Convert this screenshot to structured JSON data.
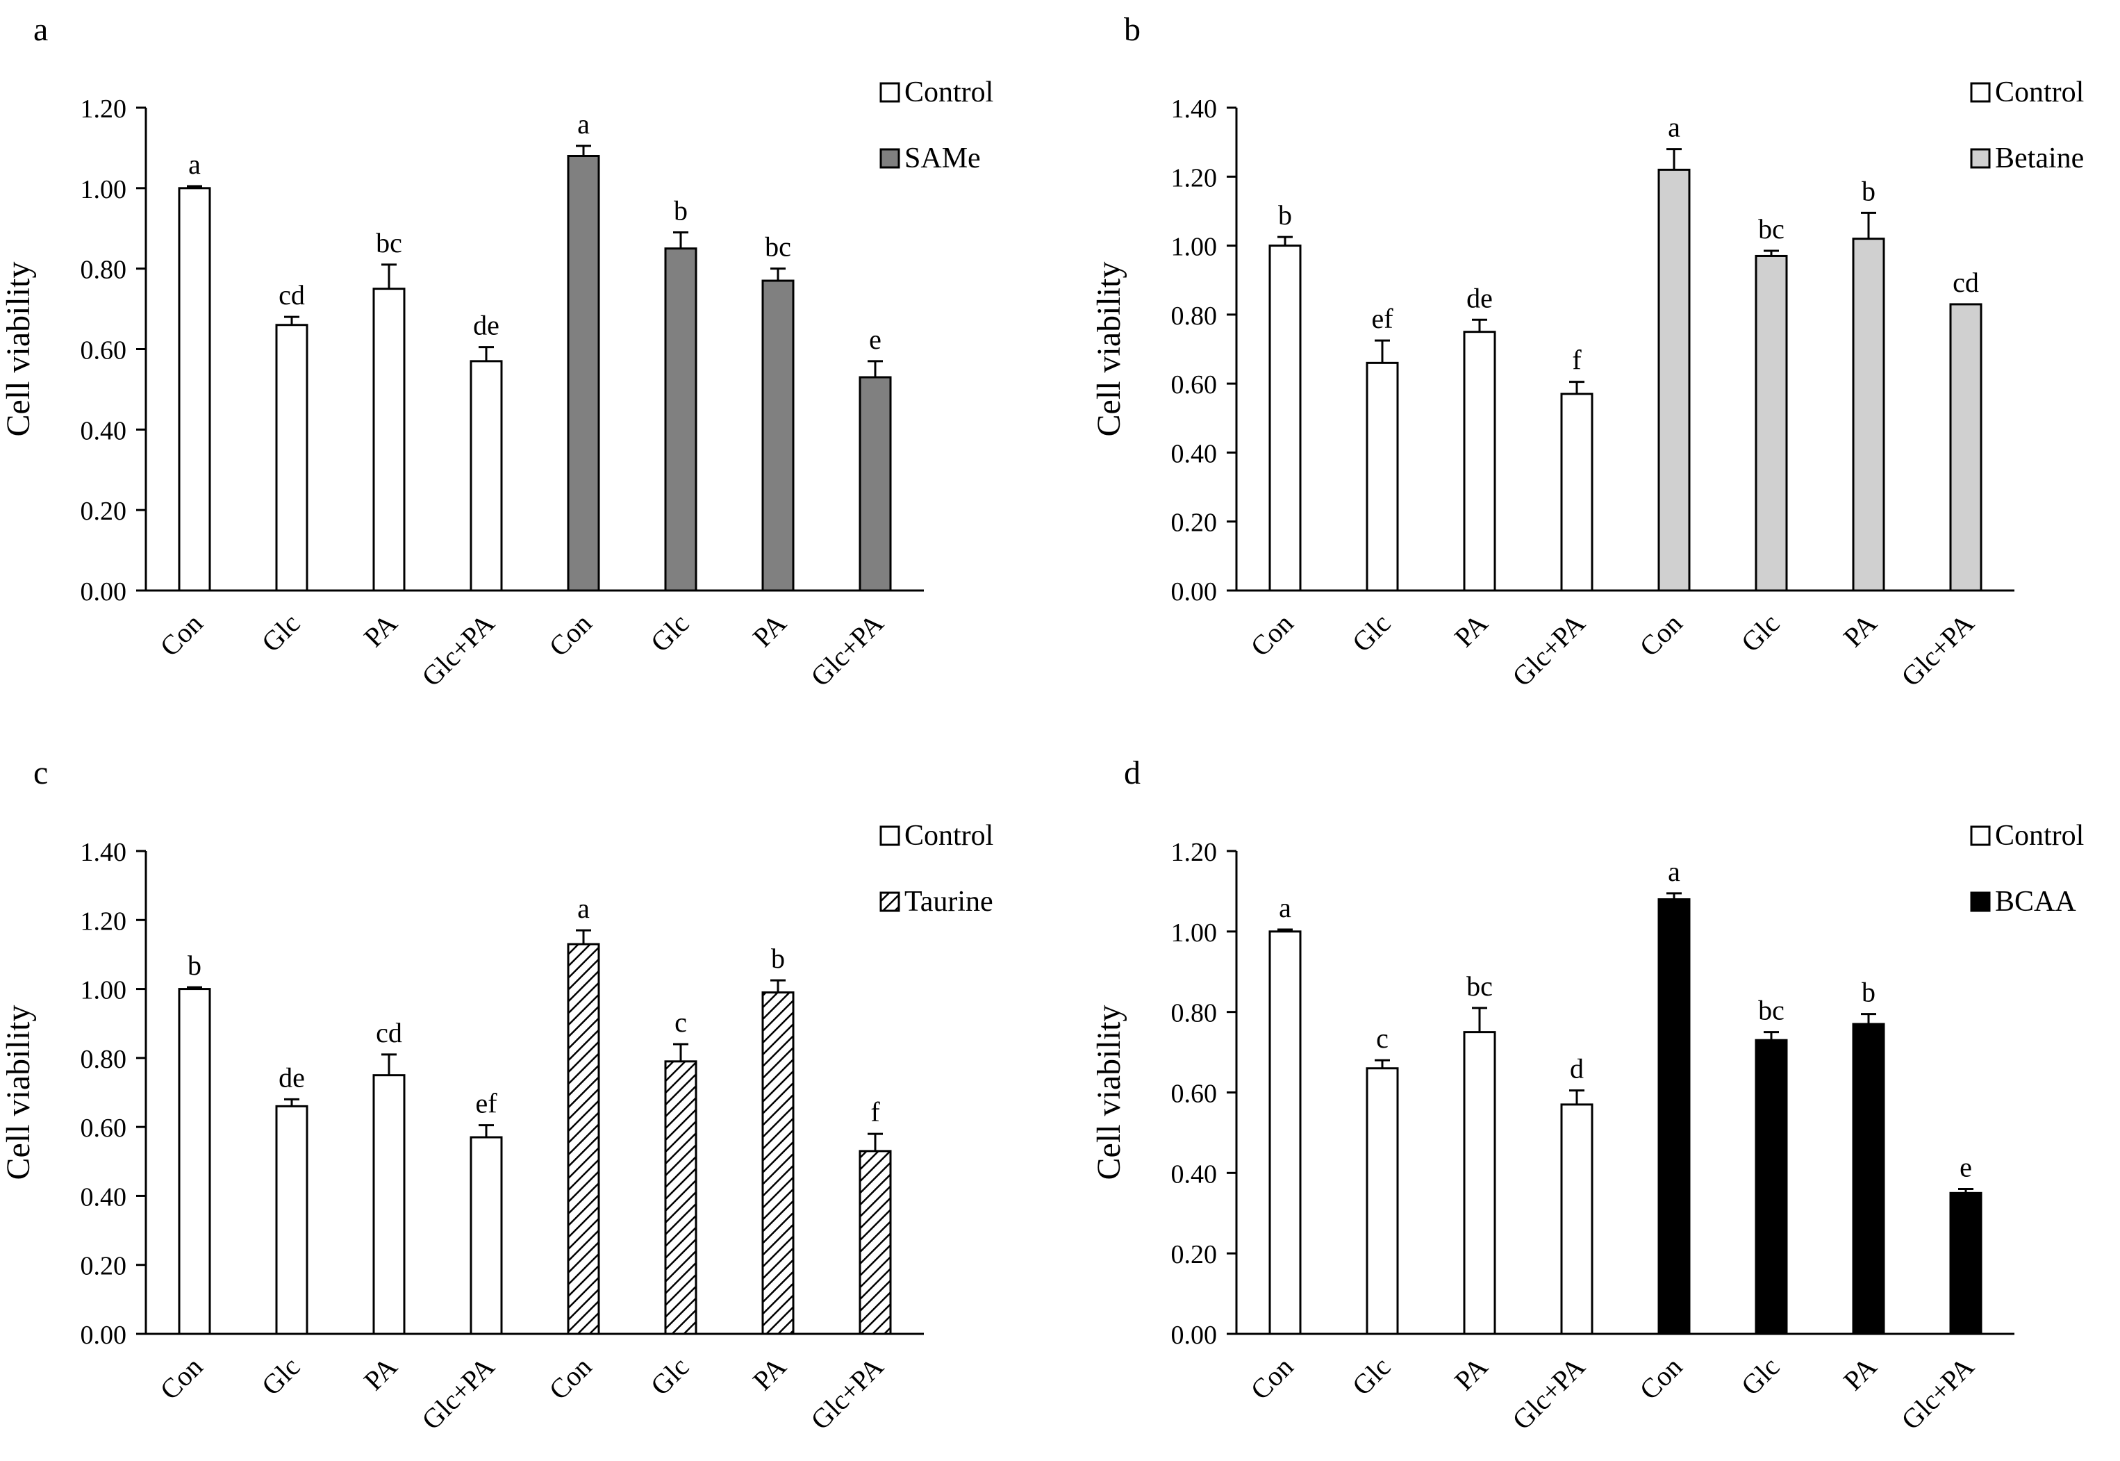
{
  "chart_data": [
    {
      "panel_label": "a",
      "type": "bar",
      "ylabel": "Cell viability",
      "ylim": [
        0,
        1.2
      ],
      "yticks": [
        "0.00",
        "0.20",
        "0.40",
        "0.60",
        "0.80",
        "1.00",
        "1.20"
      ],
      "categories": [
        "Con",
        "Glc",
        "PA",
        "Glc+PA",
        "Con",
        "Glc",
        "PA",
        "Glc+PA"
      ],
      "values": [
        1.0,
        0.66,
        0.75,
        0.57,
        1.08,
        0.85,
        0.77,
        0.53
      ],
      "errors": [
        0.005,
        0.02,
        0.06,
        0.035,
        0.025,
        0.04,
        0.03,
        0.04
      ],
      "letters": [
        "a",
        "cd",
        "bc",
        "de",
        "a",
        "b",
        "bc",
        "e"
      ],
      "fills": [
        "white",
        "white",
        "white",
        "white",
        "#808080",
        "#808080",
        "#808080",
        "#808080"
      ],
      "legend": [
        {
          "label": "Control",
          "fill": "white"
        },
        {
          "label": "SAMe",
          "fill": "#808080"
        }
      ],
      "legend_position": "top-right"
    },
    {
      "panel_label": "b",
      "type": "bar",
      "ylabel": "Cell viability",
      "ylim": [
        0,
        1.4
      ],
      "yticks": [
        "0.00",
        "0.20",
        "0.40",
        "0.60",
        "0.80",
        "1.00",
        "1.20",
        "1.40"
      ],
      "categories": [
        "Con",
        "Glc",
        "PA",
        "Glc+PA",
        "Con",
        "Glc",
        "PA",
        "Glc+PA"
      ],
      "values": [
        1.0,
        0.66,
        0.75,
        0.57,
        1.22,
        0.97,
        1.02,
        0.83
      ],
      "errors": [
        0.025,
        0.065,
        0.035,
        0.035,
        0.06,
        0.015,
        0.075,
        0.0
      ],
      "letters": [
        "b",
        "ef",
        "de",
        "f",
        "a",
        "bc",
        "b",
        "cd"
      ],
      "fills": [
        "white",
        "white",
        "white",
        "white",
        "#d0d0d0",
        "#d0d0d0",
        "#d0d0d0",
        "#d0d0d0"
      ],
      "legend": [
        {
          "label": "Control",
          "fill": "white"
        },
        {
          "label": "Betaine",
          "fill": "#d0d0d0"
        }
      ],
      "legend_position": "top-right"
    },
    {
      "panel_label": "c",
      "type": "bar",
      "ylabel": "Cell viability",
      "ylim": [
        0,
        1.4
      ],
      "yticks": [
        "0.00",
        "0.20",
        "0.40",
        "0.60",
        "0.80",
        "1.00",
        "1.20",
        "1.40"
      ],
      "categories": [
        "Con",
        "Glc",
        "PA",
        "Glc+PA",
        "Con",
        "Glc",
        "PA",
        "Glc+PA"
      ],
      "values": [
        1.0,
        0.66,
        0.75,
        0.57,
        1.13,
        0.79,
        0.99,
        0.53
      ],
      "errors": [
        0.005,
        0.02,
        0.06,
        0.035,
        0.04,
        0.05,
        0.035,
        0.05
      ],
      "letters": [
        "b",
        "de",
        "cd",
        "ef",
        "a",
        "c",
        "b",
        "f"
      ],
      "fills": [
        "white",
        "white",
        "white",
        "white",
        "hatch",
        "hatch",
        "hatch",
        "hatch"
      ],
      "legend": [
        {
          "label": "Control",
          "fill": "white"
        },
        {
          "label": "Taurine",
          "fill": "hatch"
        }
      ],
      "legend_position": "top-right"
    },
    {
      "panel_label": "d",
      "type": "bar",
      "ylabel": "Cell viability",
      "ylim": [
        0,
        1.2
      ],
      "yticks": [
        "0.00",
        "0.20",
        "0.40",
        "0.60",
        "0.80",
        "1.00",
        "1.20"
      ],
      "categories": [
        "Con",
        "Glc",
        "PA",
        "Glc+PA",
        "Con",
        "Glc",
        "PA",
        "Glc+PA"
      ],
      "values": [
        1.0,
        0.66,
        0.75,
        0.57,
        1.08,
        0.73,
        0.77,
        0.35
      ],
      "errors": [
        0.005,
        0.02,
        0.06,
        0.035,
        0.015,
        0.02,
        0.025,
        0.01
      ],
      "letters": [
        "a",
        "c",
        "bc",
        "d",
        "a",
        "bc",
        "b",
        "e"
      ],
      "fills": [
        "white",
        "white",
        "white",
        "white",
        "#000000",
        "#000000",
        "#000000",
        "#000000"
      ],
      "legend": [
        {
          "label": "Control",
          "fill": "white"
        },
        {
          "label": "BCAA",
          "fill": "#000000"
        }
      ],
      "legend_position": "top-right"
    }
  ]
}
